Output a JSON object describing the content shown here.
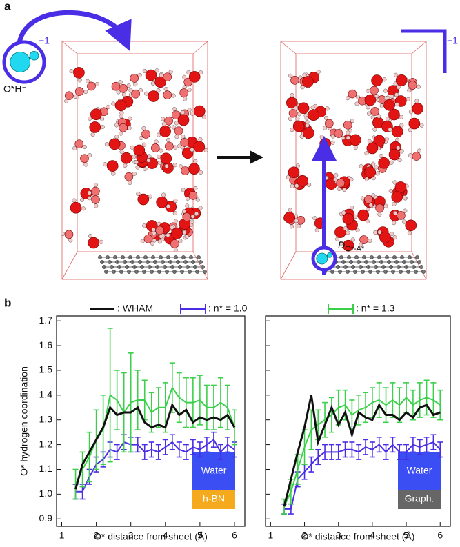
{
  "figure": {
    "panel_a_label": "a",
    "panel_b_label": "b",
    "ion_label": "O*H⁻",
    "ion_charge": "−1",
    "corner_charge": "−1",
    "distance_symbol": "D",
    "distance_subscript": "O*-A*"
  },
  "chart_data": [
    {
      "type": "line",
      "ylabel": "O* hydrogen coordination",
      "xlabel": "O* distance from sheet (Å)",
      "x": [
        1.4,
        1.6,
        1.8,
        2.0,
        2.2,
        2.4,
        2.6,
        2.8,
        3.0,
        3.2,
        3.4,
        3.6,
        3.8,
        4.0,
        4.2,
        4.4,
        4.6,
        4.8,
        5.0,
        5.2,
        5.4,
        5.6,
        5.8,
        6.0
      ],
      "xlim": [
        0.85,
        6.3
      ],
      "xticks": [
        1,
        2,
        3,
        4,
        5,
        6
      ],
      "ylim": [
        0.87,
        1.72
      ],
      "yticks": [
        0.9,
        {
          "value": 1,
          "label": "1.0"
        },
        1.1,
        1.2,
        1.3,
        1.4,
        1.5,
        1.6,
        1.7
      ],
      "annotations": [
        {
          "text": "Water",
          "color": "#3b4ef4"
        },
        {
          "text": "h-BN",
          "color": "#f5a91c"
        }
      ],
      "series": [
        {
          "name": ": WHAM",
          "color": "#111111",
          "values": [
            1.02,
            1.12,
            1.17,
            1.22,
            1.27,
            1.35,
            1.32,
            1.33,
            1.33,
            1.35,
            1.29,
            1.27,
            1.28,
            1.27,
            1.36,
            1.32,
            1.34,
            1.29,
            1.31,
            1.3,
            1.31,
            1.3,
            1.32,
            1.27
          ]
        },
        {
          "name": ": n* = 1.0",
          "color": "#4a2ee6",
          "values": [
            1.01,
            1.01,
            1.07,
            1.12,
            1.14,
            1.18,
            1.17,
            1.21,
            1.2,
            1.2,
            1.17,
            1.18,
            1.17,
            1.19,
            1.21,
            1.18,
            1.17,
            1.19,
            1.18,
            1.2,
            1.22,
            1.17,
            1.2,
            1.18
          ],
          "errors": [
            0.03,
            0.03,
            0.03,
            0.03,
            0.03,
            0.03,
            0.03,
            0.03,
            0.03,
            0.03,
            0.03,
            0.03,
            0.03,
            0.03,
            0.03,
            0.03,
            0.03,
            0.03,
            0.03,
            0.03,
            0.03,
            0.03,
            0.03,
            0.03
          ]
        },
        {
          "name": ": n* = 1.3",
          "color": "#3bd04a",
          "values": [
            1.04,
            1.1,
            1.15,
            1.22,
            1.26,
            1.4,
            1.38,
            1.33,
            1.37,
            1.38,
            1.38,
            1.33,
            1.35,
            1.35,
            1.43,
            1.39,
            1.37,
            1.37,
            1.38,
            1.35,
            1.35,
            1.37,
            1.35,
            1.27
          ],
          "errors": [
            0.06,
            0.07,
            0.1,
            0.12,
            0.14,
            0.27,
            0.12,
            0.16,
            0.2,
            0.12,
            0.08,
            0.08,
            0.08,
            0.1,
            0.1,
            0.1,
            0.1,
            0.1,
            0.1,
            0.09,
            0.09,
            0.1,
            0.09,
            0.07
          ]
        }
      ]
    },
    {
      "type": "line",
      "xlabel": "O* distance from sheet (Å)",
      "x": [
        1.4,
        1.6,
        1.8,
        2.0,
        2.2,
        2.4,
        2.6,
        2.8,
        3.0,
        3.2,
        3.4,
        3.6,
        3.8,
        4.0,
        4.2,
        4.4,
        4.6,
        4.8,
        5.0,
        5.2,
        5.4,
        5.6,
        5.8,
        6.0
      ],
      "xlim": [
        0.85,
        6.3
      ],
      "xticks": [
        1,
        2,
        3,
        4,
        5,
        6
      ],
      "ylim": [
        0.87,
        1.72
      ],
      "yticks": [
        0.9,
        1,
        1.1,
        1.2,
        1.3,
        1.4,
        1.5,
        1.6,
        1.7
      ],
      "annotations": [
        {
          "text": "Water",
          "color": "#3b4ef4"
        },
        {
          "text": "Graph.",
          "color": "#666666"
        }
      ],
      "series": [
        {
          "color": "#111111",
          "values": [
            0.95,
            1.06,
            1.17,
            1.27,
            1.4,
            1.21,
            1.28,
            1.35,
            1.28,
            1.33,
            1.24,
            1.33,
            1.31,
            1.3,
            1.36,
            1.32,
            1.32,
            1.3,
            1.33,
            1.31,
            1.35,
            1.36,
            1.32,
            1.33
          ]
        },
        {
          "color": "#4a2ee6",
          "values": [
            0.94,
            0.94,
            1.06,
            1.09,
            1.12,
            1.15,
            1.17,
            1.17,
            1.17,
            1.18,
            1.18,
            1.17,
            1.19,
            1.18,
            1.2,
            1.17,
            1.2,
            1.17,
            1.17,
            1.2,
            1.19,
            1.2,
            1.21,
            1.18
          ],
          "errors": [
            0.02,
            0.02,
            0.03,
            0.03,
            0.03,
            0.03,
            0.03,
            0.03,
            0.03,
            0.03,
            0.03,
            0.03,
            0.03,
            0.03,
            0.03,
            0.03,
            0.03,
            0.03,
            0.03,
            0.03,
            0.03,
            0.03,
            0.03,
            0.03
          ]
        },
        {
          "color": "#3bd04a",
          "values": [
            0.95,
            1.01,
            1.1,
            1.19,
            1.26,
            1.28,
            1.3,
            1.32,
            1.35,
            1.36,
            1.32,
            1.34,
            1.35,
            1.37,
            1.38,
            1.36,
            1.38,
            1.36,
            1.39,
            1.36,
            1.38,
            1.39,
            1.38,
            1.36
          ],
          "errors": [
            0.03,
            0.05,
            0.06,
            0.07,
            0.08,
            0.06,
            0.07,
            0.07,
            0.07,
            0.06,
            0.06,
            0.06,
            0.06,
            0.06,
            0.07,
            0.07,
            0.07,
            0.07,
            0.06,
            0.06,
            0.07,
            0.07,
            0.07,
            0.06
          ]
        }
      ]
    }
  ]
}
